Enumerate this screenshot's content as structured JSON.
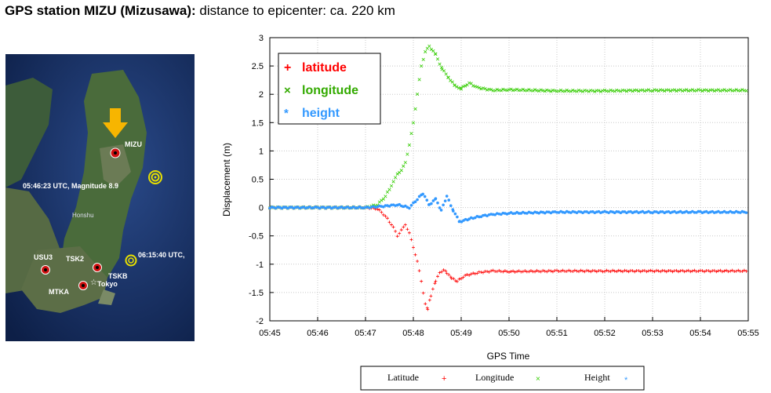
{
  "header": {
    "title_bold": "GPS station MIZU (Mizusawa):",
    "title_rest": "distance to epicenter: ca. 220 km"
  },
  "map": {
    "station_label": "MIZU",
    "quake1": "05:46:23 UTC, Magnitude 8.9",
    "quake2": "06:15:40 UTC,",
    "region": "Honshu",
    "stations": [
      "USU3",
      "TSK2",
      "TSKB",
      "MTKA"
    ],
    "city": "Tokyo",
    "colors": {
      "arrow": "#f7b500",
      "station": "#d01010",
      "epicenter": "#e8e000"
    }
  },
  "chart_data": {
    "type": "scatter",
    "xlabel": "GPS Time",
    "ylabel": "Displacement (m)",
    "x_ticks": [
      "05:45",
      "05:46",
      "05:47",
      "05:48",
      "05:49",
      "05:50",
      "05:51",
      "05:52",
      "05:53",
      "05:54",
      "05:55"
    ],
    "y_ticks": [
      "3",
      "2.5",
      "2",
      "1.5",
      "1",
      "0.5",
      "0",
      "-0.5",
      "-1",
      "-1.5",
      "-2"
    ],
    "xlim": [
      "05:45",
      "05:55"
    ],
    "ylim": [
      -2,
      3
    ],
    "grid": true,
    "legend_placement": "top-left",
    "series": [
      {
        "name": "latitude",
        "marker": "+",
        "color": "#ff0000",
        "points": [
          [
            "05:45:00",
            0
          ],
          [
            "05:46:00",
            0
          ],
          [
            "05:47:00",
            0
          ],
          [
            "05:47:15",
            -0.02
          ],
          [
            "05:47:25",
            -0.15
          ],
          [
            "05:47:35",
            -0.35
          ],
          [
            "05:47:40",
            -0.5
          ],
          [
            "05:47:45",
            -0.4
          ],
          [
            "05:47:50",
            -0.3
          ],
          [
            "05:47:55",
            -0.45
          ],
          [
            "05:48:00",
            -0.7
          ],
          [
            "05:48:05",
            -0.95
          ],
          [
            "05:48:10",
            -1.3
          ],
          [
            "05:48:15",
            -1.7
          ],
          [
            "05:48:18",
            -1.8
          ],
          [
            "05:48:22",
            -1.55
          ],
          [
            "05:48:28",
            -1.3
          ],
          [
            "05:48:33",
            -1.15
          ],
          [
            "05:48:38",
            -1.1
          ],
          [
            "05:48:42",
            -1.15
          ],
          [
            "05:48:48",
            -1.25
          ],
          [
            "05:48:55",
            -1.3
          ],
          [
            "05:49:05",
            -1.2
          ],
          [
            "05:49:20",
            -1.15
          ],
          [
            "05:49:40",
            -1.12
          ],
          [
            "05:50:00",
            -1.13
          ],
          [
            "05:51:00",
            -1.12
          ],
          [
            "05:52:00",
            -1.12
          ],
          [
            "05:53:00",
            -1.12
          ],
          [
            "05:54:00",
            -1.12
          ],
          [
            "05:55:00",
            -1.12
          ]
        ]
      },
      {
        "name": "longitude",
        "marker": "x",
        "color": "#33cc00",
        "points": [
          [
            "05:45:00",
            0
          ],
          [
            "05:46:00",
            0
          ],
          [
            "05:47:00",
            0
          ],
          [
            "05:47:15",
            0.05
          ],
          [
            "05:47:25",
            0.2
          ],
          [
            "05:47:35",
            0.45
          ],
          [
            "05:47:40",
            0.6
          ],
          [
            "05:47:45",
            0.65
          ],
          [
            "05:47:50",
            0.8
          ],
          [
            "05:47:55",
            1.1
          ],
          [
            "05:48:00",
            1.5
          ],
          [
            "05:48:05",
            2.0
          ],
          [
            "05:48:10",
            2.5
          ],
          [
            "05:48:15",
            2.75
          ],
          [
            "05:48:20",
            2.85
          ],
          [
            "05:48:28",
            2.7
          ],
          [
            "05:48:36",
            2.45
          ],
          [
            "05:48:44",
            2.3
          ],
          [
            "05:48:52",
            2.15
          ],
          [
            "05:49:00",
            2.1
          ],
          [
            "05:49:10",
            2.2
          ],
          [
            "05:49:20",
            2.12
          ],
          [
            "05:49:40",
            2.07
          ],
          [
            "05:50:00",
            2.08
          ],
          [
            "05:51:00",
            2.06
          ],
          [
            "05:52:00",
            2.06
          ],
          [
            "05:53:00",
            2.07
          ],
          [
            "05:54:00",
            2.07
          ],
          [
            "05:55:00",
            2.07
          ]
        ]
      },
      {
        "name": "height",
        "marker": "*",
        "color": "#3399ff",
        "points": [
          [
            "05:45:00",
            0
          ],
          [
            "05:46:00",
            0
          ],
          [
            "05:47:00",
            0
          ],
          [
            "05:47:20",
            0.02
          ],
          [
            "05:47:40",
            0.05
          ],
          [
            "05:47:55",
            0.0
          ],
          [
            "05:48:05",
            0.15
          ],
          [
            "05:48:12",
            0.25
          ],
          [
            "05:48:20",
            0.05
          ],
          [
            "05:48:28",
            0.15
          ],
          [
            "05:48:35",
            -0.05
          ],
          [
            "05:48:42",
            0.2
          ],
          [
            "05:48:50",
            -0.05
          ],
          [
            "05:48:58",
            -0.25
          ],
          [
            "05:49:10",
            -0.2
          ],
          [
            "05:49:25",
            -0.15
          ],
          [
            "05:49:40",
            -0.12
          ],
          [
            "05:50:00",
            -0.1
          ],
          [
            "05:51:00",
            -0.08
          ],
          [
            "05:52:00",
            -0.08
          ],
          [
            "05:53:00",
            -0.08
          ],
          [
            "05:54:00",
            -0.08
          ],
          [
            "05:55:00",
            -0.08
          ]
        ]
      }
    ],
    "legend_top": [
      "latitude",
      "longitude",
      "height"
    ],
    "legend_bottom": [
      "Latitude",
      "Longitude",
      "Height"
    ]
  }
}
